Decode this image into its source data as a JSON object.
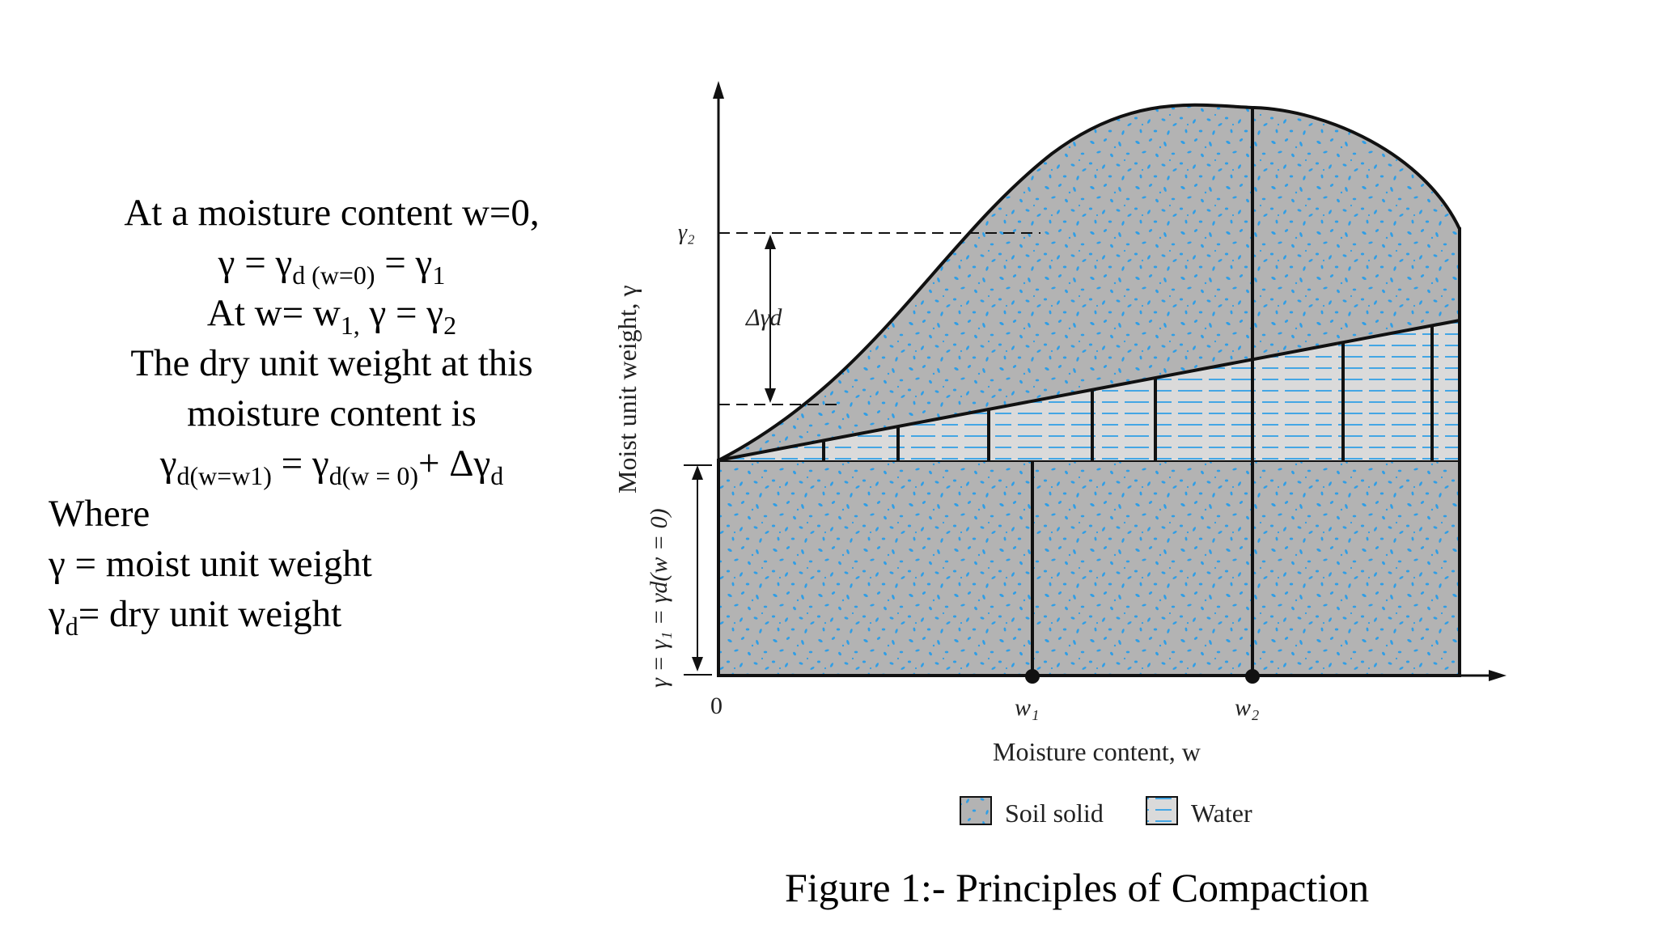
{
  "explanation": {
    "line1": "At a moisture content w=0,",
    "line2": {
      "a": "γ = γ",
      "a_sub": "d (w=0)",
      "b": " = γ",
      "b_sub": "1"
    },
    "line3": {
      "a": "At w= w",
      "a_sub": "1,",
      "b": " γ =  γ",
      "b_sub": "2"
    },
    "line4": "The dry unit weight at this",
    "line5": "moisture content is",
    "line6": {
      "a": "γ",
      "a_sub": "d(w=w1)",
      "b": " = γ",
      "b_sub": "d(w = 0)",
      "c": "+ Δγ",
      "c_sub": "d"
    },
    "where": "Where",
    "def1": "γ = moist unit weight",
    "def2": {
      "a": "γ",
      "a_sub": "d",
      "b": "= dry unit weight"
    }
  },
  "figure": {
    "y_axis_label": "Moist unit weight, γ",
    "y_axis_left_label": "γ = γ₁ = γd(w = 0)",
    "gamma2_label": "γ₂",
    "delta_label": "Δγd",
    "origin_label": "0",
    "w1_label": "w₁",
    "w2_label": "w₂",
    "x_axis_label": "Moisture content, w",
    "legend": [
      {
        "label": "Soil solid",
        "pattern": "soil"
      },
      {
        "label": "Water",
        "pattern": "water"
      }
    ],
    "colors": {
      "soil_fill": "#b3b3b3",
      "soil_specks": "#2f9ee6",
      "water_fill": "#dadada",
      "water_lines": "#2f9ee6",
      "line": "#111111"
    }
  },
  "caption": "Figure 1:- Principles of Compaction"
}
